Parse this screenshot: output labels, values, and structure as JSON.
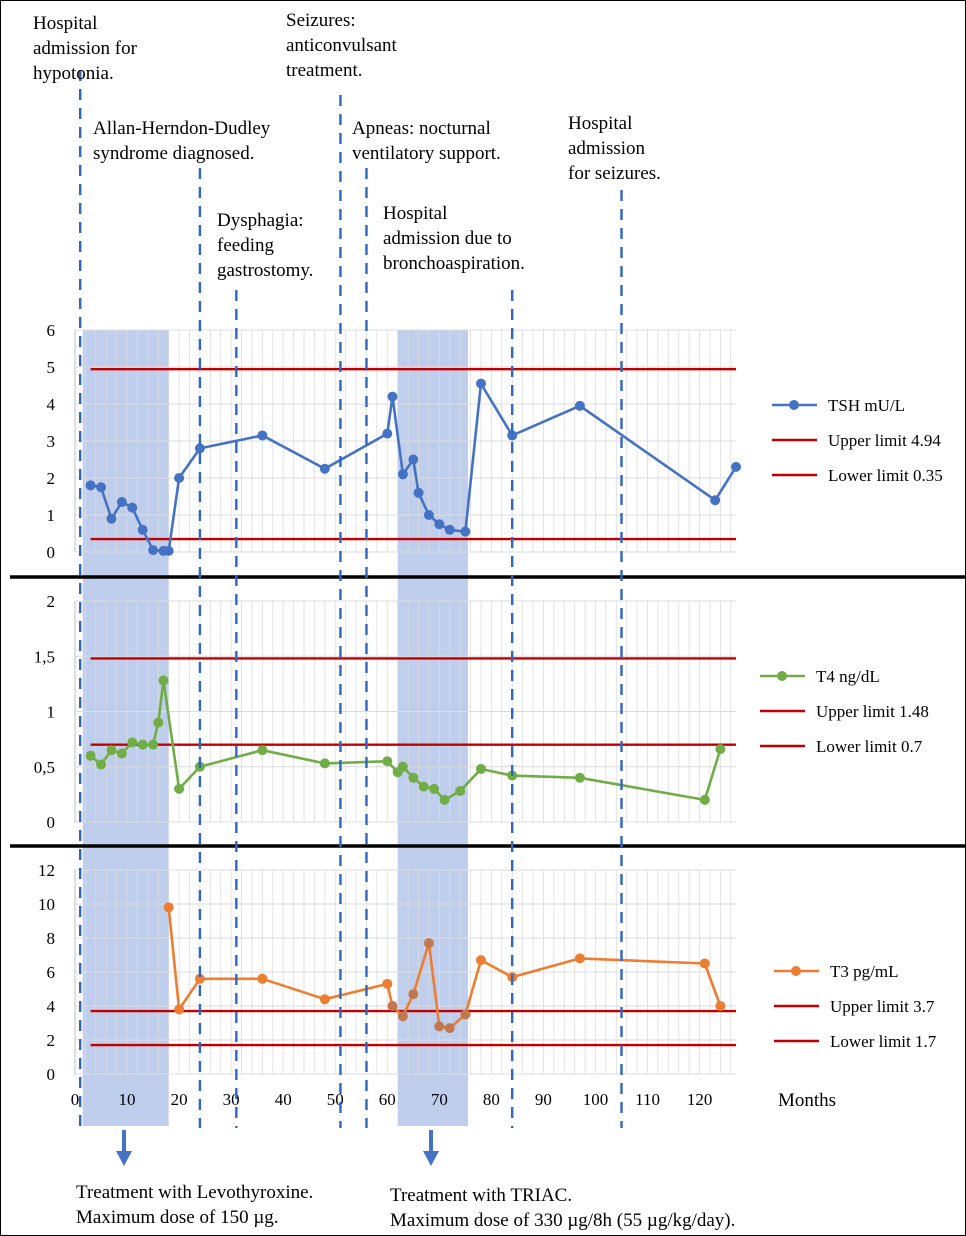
{
  "events": [
    {
      "key": "hospital_admission_hypotonia",
      "text": "Hospital\nadmission for\nhypotonia."
    },
    {
      "key": "ahd_diagnosed",
      "text": "Allan-Herndon-Dudley\nsyndrome diagnosed."
    },
    {
      "key": "dysphagia",
      "text": "Dysphagia:\nfeeding\ngastrostomy."
    },
    {
      "key": "seizures",
      "text": "Seizures:\nanticonvulsant\ntreatment."
    },
    {
      "key": "apneas",
      "text": "Apneas: nocturnal\nventilatory support."
    },
    {
      "key": "bronchoaspiration",
      "text": "Hospital\nadmission due to\nbronchoaspiration."
    },
    {
      "key": "admission_seizures",
      "text": "Hospital\nadmission\nfor seizures."
    }
  ],
  "event_months": [
    1,
    24,
    31,
    51,
    56,
    84,
    105
  ],
  "treatments": [
    {
      "text": "Treatment with Levothyroxine.\nMaximum dose of 150 µg.",
      "range": [
        1.5,
        18
      ]
    },
    {
      "text": "Treatment with TRIAC.\nMaximum dose of 330 µg/8h (55 µg/kg/day).",
      "range": [
        62,
        75.5
      ]
    }
  ],
  "colors": {
    "tsh": "#4472C4",
    "t4": "#70AD47",
    "t3": "#ED7D31",
    "t3_triac": "#C07850",
    "limit": "#C00000",
    "shade": "#A9BEE6",
    "event_line": "#2E66C4",
    "arrow": "#4472C4"
  },
  "chart_data": [
    {
      "type": "line",
      "xlabel": "Months",
      "xlim": [
        0,
        127
      ],
      "ylim": [
        0,
        6
      ],
      "yticks": [
        "0",
        "1",
        "2",
        "3",
        "4",
        "5",
        "6"
      ],
      "series": [
        {
          "name": "TSH mU/L",
          "x": [
            3,
            5,
            7,
            9,
            11,
            13,
            15,
            17,
            18,
            20,
            24,
            36,
            48,
            60,
            61,
            63,
            65,
            66,
            68,
            70,
            72,
            75,
            78,
            84,
            97,
            123,
            127
          ],
          "y": [
            1.8,
            1.75,
            0.9,
            1.35,
            1.2,
            0.6,
            0.05,
            0.03,
            0.03,
            2.0,
            2.8,
            3.15,
            2.25,
            3.2,
            4.2,
            2.1,
            2.5,
            1.6,
            1.0,
            0.75,
            0.6,
            0.55,
            4.55,
            3.15,
            3.95,
            1.4,
            2.3
          ]
        },
        {
          "name": "Upper limit 4.94",
          "value": 4.94
        },
        {
          "name": "Lower limit 0.35",
          "value": 0.35
        }
      ]
    },
    {
      "type": "line",
      "xlim": [
        0,
        127
      ],
      "ylim": [
        0,
        2
      ],
      "yticks": [
        "0",
        "0,5",
        "1",
        "1,5",
        "2"
      ],
      "series": [
        {
          "name": "T4 ng/dL",
          "x": [
            3,
            5,
            7,
            9,
            11,
            13,
            15,
            16,
            17,
            20,
            24,
            36,
            48,
            60,
            62,
            63,
            65,
            67,
            69,
            71,
            74,
            78,
            84,
            97,
            121,
            124
          ],
          "y": [
            0.6,
            0.52,
            0.65,
            0.62,
            0.72,
            0.7,
            0.7,
            0.9,
            1.28,
            0.3,
            0.5,
            0.65,
            0.53,
            0.55,
            0.45,
            0.5,
            0.4,
            0.32,
            0.3,
            0.2,
            0.28,
            0.48,
            0.42,
            0.4,
            0.2,
            0.66
          ]
        },
        {
          "name": "Upper limit 1.48",
          "value": 1.48
        },
        {
          "name": "Lower limit 0.7",
          "value": 0.7
        }
      ]
    },
    {
      "type": "line",
      "xlim": [
        0,
        127
      ],
      "ylim": [
        0,
        12
      ],
      "yticks": [
        "0",
        "2",
        "4",
        "6",
        "8",
        "10",
        "12"
      ],
      "xticks": [
        "0",
        "10",
        "20",
        "30",
        "40",
        "50",
        "60",
        "70",
        "80",
        "90",
        "100",
        "110",
        "120"
      ],
      "series": [
        {
          "name": "T3 pg/mL",
          "x": [
            18,
            20,
            24,
            36,
            48,
            60,
            61,
            63,
            65,
            68,
            70,
            72,
            75,
            78,
            84,
            97,
            121,
            124
          ],
          "y": [
            9.8,
            3.8,
            5.6,
            5.6,
            4.4,
            5.3,
            4.0,
            3.4,
            4.7,
            7.7,
            2.8,
            2.7,
            3.5,
            6.7,
            5.7,
            6.8,
            6.5,
            4.0
          ]
        },
        {
          "name": "Upper limit 3.7",
          "value": 3.7
        },
        {
          "name": "Lower limit 1.7",
          "value": 1.7
        }
      ]
    }
  ]
}
